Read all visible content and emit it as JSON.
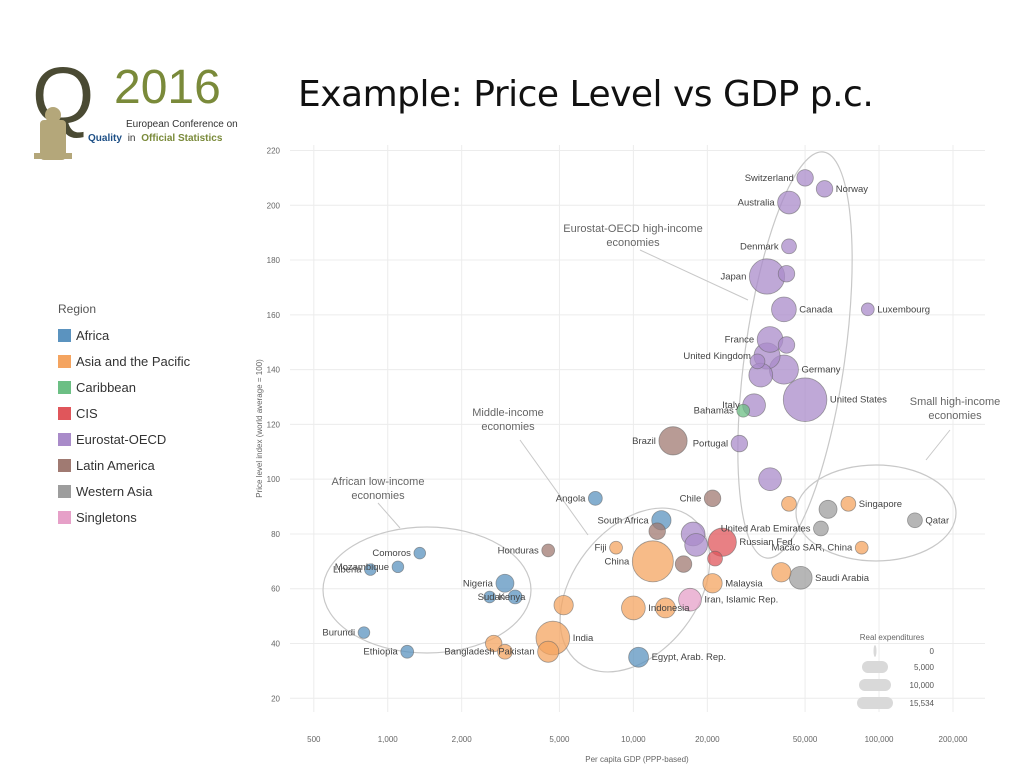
{
  "slide": {
    "title": "Example: Price Level vs GDP p.c."
  },
  "logo": {
    "letter": "Q",
    "year": "2016",
    "line1": "European Conference on",
    "line2_a": "Quality",
    "line2_b": "in",
    "line2_c": "Official Statistics"
  },
  "legend": {
    "title": "Region",
    "items": [
      {
        "label": "Africa",
        "color": "#5b93bf"
      },
      {
        "label": "Asia and the Pacific",
        "color": "#f4a460"
      },
      {
        "label": "Caribbean",
        "color": "#6cbf84"
      },
      {
        "label": "CIS",
        "color": "#e0565b"
      },
      {
        "label": "Eurostat-OECD",
        "color": "#a98bc9"
      },
      {
        "label": "Latin America",
        "color": "#a07a72"
      },
      {
        "label": "Western Asia",
        "color": "#9d9d9d"
      },
      {
        "label": "Singletons",
        "color": "#e6a0c8"
      }
    ]
  },
  "chart_data": {
    "type": "scatter",
    "x_scale": "log",
    "xlabel": "Per capita GDP (PPP-based)",
    "ylabel": "Price level index (world average = 100)",
    "xlim": [
      400,
      270000
    ],
    "ylim": [
      15,
      222
    ],
    "x_ticks": [
      500,
      1000,
      2000,
      5000,
      10000,
      20000,
      50000,
      100000,
      200000
    ],
    "x_tick_labels": [
      "500",
      "1,000",
      "2,000",
      "5,000",
      "10,000",
      "20,000",
      "50,000",
      "100,000",
      "200,000"
    ],
    "y_ticks": [
      20,
      40,
      60,
      80,
      100,
      120,
      140,
      160,
      180,
      200,
      220
    ],
    "grid": true,
    "size_legend": {
      "title": "Real expenditures",
      "labels": [
        "0",
        "5,000",
        "10,000",
        "15,534"
      ]
    },
    "points": [
      {
        "label": "Switzerland",
        "x": 50000,
        "y": 210,
        "region": "Eurostat-OECD",
        "size": 0.8
      },
      {
        "label": "Norway",
        "x": 60000,
        "y": 206,
        "region": "Eurostat-OECD",
        "size": 0.8
      },
      {
        "label": "Australia",
        "x": 43000,
        "y": 201,
        "region": "Eurostat-OECD",
        "size": 1.8
      },
      {
        "label": "Denmark",
        "x": 43000,
        "y": 185,
        "region": "Eurostat-OECD",
        "size": 0.6
      },
      {
        "label": "Japan",
        "x": 35000,
        "y": 174,
        "region": "Eurostat-OECD",
        "size": 5
      },
      {
        "label": "",
        "x": 42000,
        "y": 175,
        "region": "Eurostat-OECD",
        "size": 0.8
      },
      {
        "label": "Canada",
        "x": 41000,
        "y": 162,
        "region": "Eurostat-OECD",
        "size": 2.2
      },
      {
        "label": "Luxembourg",
        "x": 90000,
        "y": 162,
        "region": "Eurostat-OECD",
        "size": 0.4
      },
      {
        "label": "France",
        "x": 36000,
        "y": 151,
        "region": "Eurostat-OECD",
        "size": 2.4
      },
      {
        "label": "",
        "x": 42000,
        "y": 149,
        "region": "Eurostat-OECD",
        "size": 0.8
      },
      {
        "label": "United Kingdom",
        "x": 35000,
        "y": 145,
        "region": "Eurostat-OECD",
        "size": 2.5
      },
      {
        "label": "Germany",
        "x": 41000,
        "y": 140,
        "region": "Eurostat-OECD",
        "size": 3.2
      },
      {
        "label": "",
        "x": 33000,
        "y": 138,
        "region": "Eurostat-OECD",
        "size": 2
      },
      {
        "label": "",
        "x": 32000,
        "y": 143,
        "region": "Eurostat-OECD",
        "size": 0.6
      },
      {
        "label": "Italy",
        "x": 31000,
        "y": 127,
        "region": "Eurostat-OECD",
        "size": 1.8
      },
      {
        "label": "United States",
        "x": 50000,
        "y": 129,
        "region": "Eurostat-OECD",
        "size": 8
      },
      {
        "label": "Bahamas",
        "x": 28000,
        "y": 125,
        "region": "Caribbean",
        "size": 0.4
      },
      {
        "label": "Portugal",
        "x": 27000,
        "y": 113,
        "region": "Eurostat-OECD",
        "size": 0.8
      },
      {
        "label": "Brazil",
        "x": 14500,
        "y": 114,
        "region": "Latin America",
        "size": 3
      },
      {
        "label": "",
        "x": 36000,
        "y": 100,
        "region": "Eurostat-OECD",
        "size": 1.8
      },
      {
        "label": "Chile",
        "x": 21000,
        "y": 93,
        "region": "Latin America",
        "size": 0.8
      },
      {
        "label": "South Africa",
        "x": 13000,
        "y": 85,
        "region": "Africa",
        "size": 1.2
      },
      {
        "label": "Angola",
        "x": 7000,
        "y": 93,
        "region": "Africa",
        "size": 0.5
      },
      {
        "label": "",
        "x": 12500,
        "y": 81,
        "region": "Latin America",
        "size": 0.8
      },
      {
        "label": "",
        "x": 17500,
        "y": 80,
        "region": "Eurostat-OECD",
        "size": 2
      },
      {
        "label": "",
        "x": 18000,
        "y": 76,
        "region": "Eurostat-OECD",
        "size": 1.8
      },
      {
        "label": "",
        "x": 16000,
        "y": 69,
        "region": "Latin America",
        "size": 0.8
      },
      {
        "label": "Russian Fed.",
        "x": 23000,
        "y": 77,
        "region": "CIS",
        "size": 3
      },
      {
        "label": "",
        "x": 21500,
        "y": 71,
        "region": "CIS",
        "size": 0.6
      },
      {
        "label": "Singapore",
        "x": 75000,
        "y": 91,
        "region": "Asia and the Pacific",
        "size": 0.6
      },
      {
        "label": "",
        "x": 62000,
        "y": 89,
        "region": "Western Asia",
        "size": 1
      },
      {
        "label": "",
        "x": 43000,
        "y": 91,
        "region": "Asia and the Pacific",
        "size": 0.6
      },
      {
        "label": "United Arab Emirates",
        "x": 58000,
        "y": 82,
        "region": "Western Asia",
        "size": 0.6
      },
      {
        "label": "Qatar",
        "x": 140000,
        "y": 85,
        "region": "Western Asia",
        "size": 0.6
      },
      {
        "label": "Macao SAR, China",
        "x": 85000,
        "y": 75,
        "region": "Asia and the Pacific",
        "size": 0.4
      },
      {
        "label": "",
        "x": 40000,
        "y": 66,
        "region": "Asia and the Pacific",
        "size": 1.2
      },
      {
        "label": "Saudi Arabia",
        "x": 48000,
        "y": 64,
        "region": "Western Asia",
        "size": 1.8
      },
      {
        "label": "Malaysia",
        "x": 21000,
        "y": 62,
        "region": "Asia and the Pacific",
        "size": 1.2
      },
      {
        "label": "Iran, Islamic Rep.",
        "x": 17000,
        "y": 56,
        "region": "Singletons",
        "size": 1.8
      },
      {
        "label": "China",
        "x": 12000,
        "y": 70,
        "region": "Asia and the Pacific",
        "size": 7
      },
      {
        "label": "Fiji",
        "x": 8500,
        "y": 75,
        "region": "Asia and the Pacific",
        "size": 0.4
      },
      {
        "label": "Honduras",
        "x": 4500,
        "y": 74,
        "region": "Latin America",
        "size": 0.4
      },
      {
        "label": "Indonesia",
        "x": 10000,
        "y": 53,
        "region": "Asia and the Pacific",
        "size": 2
      },
      {
        "label": "",
        "x": 13500,
        "y": 53,
        "region": "Asia and the Pacific",
        "size": 1.3
      },
      {
        "label": "",
        "x": 5200,
        "y": 54,
        "region": "Asia and the Pacific",
        "size": 1.2
      },
      {
        "label": "Nigeria",
        "x": 3000,
        "y": 62,
        "region": "Africa",
        "size": 1
      },
      {
        "label": "Sudan",
        "x": 3300,
        "y": 57,
        "region": "Africa",
        "size": 0.5
      },
      {
        "label": "India",
        "x": 4700,
        "y": 42,
        "region": "Asia and the Pacific",
        "size": 4.5
      },
      {
        "label": "Pakistan",
        "x": 4500,
        "y": 37,
        "region": "Asia and the Pacific",
        "size": 1.5
      },
      {
        "label": "",
        "x": 2700,
        "y": 40,
        "region": "Asia and the Pacific",
        "size": 0.8
      },
      {
        "label": "Bangladesh",
        "x": 3000,
        "y": 37,
        "region": "Asia and the Pacific",
        "size": 0.6
      },
      {
        "label": "Egypt, Arab. Rep.",
        "x": 10500,
        "y": 35,
        "region": "Africa",
        "size": 1.3
      },
      {
        "label": "Comoros",
        "x": 1350,
        "y": 73,
        "region": "Africa",
        "size": 0.3
      },
      {
        "label": "Liberia",
        "x": 850,
        "y": 67,
        "region": "Africa",
        "size": 0.3
      },
      {
        "label": "Mozambique",
        "x": 1100,
        "y": 68,
        "region": "Africa",
        "size": 0.3
      },
      {
        "label": "Kenya",
        "x": 2600,
        "y": 57,
        "region": "Africa",
        "size": 0.3
      },
      {
        "label": "Burundi",
        "x": 800,
        "y": 44,
        "region": "Africa",
        "size": 0.3
      },
      {
        "label": "Ethiopia",
        "x": 1200,
        "y": 37,
        "region": "Africa",
        "size": 0.4
      }
    ],
    "annotations": [
      {
        "text": "Eurostat-OECD high-income economies"
      },
      {
        "text": "Middle-income economies"
      },
      {
        "text": "African low-income economies"
      },
      {
        "text": "Small high-income economies"
      }
    ]
  }
}
